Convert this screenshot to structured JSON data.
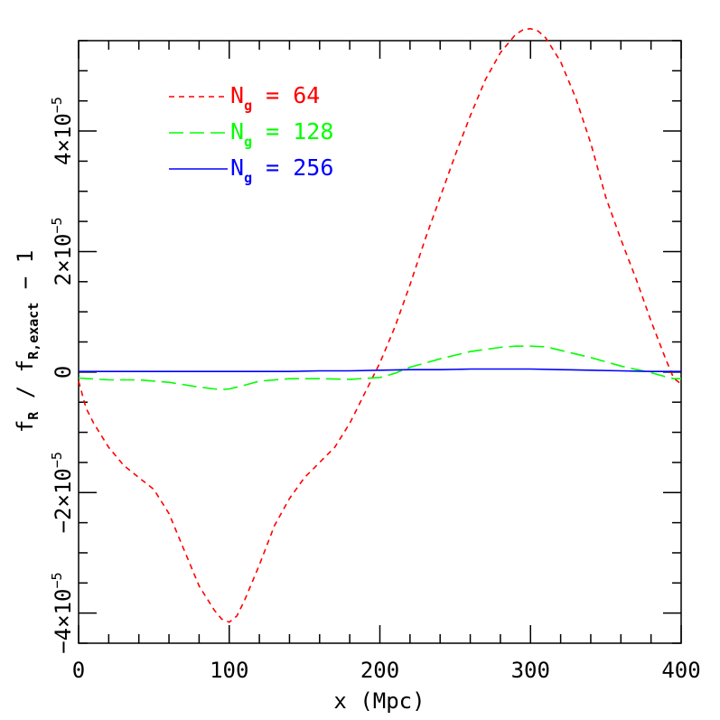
{
  "chart_data": {
    "type": "line",
    "xlabel": "x (Mpc)",
    "ylabel_parts": {
      "f1": "f",
      "sub1": "R",
      "slash": " / ",
      "f2": "f",
      "sub2": "R,exact",
      "tail": " − 1"
    },
    "xlim": [
      0,
      400
    ],
    "ylim": [
      -4.5e-05,
      5.5e-05
    ],
    "x_ticks": [
      {
        "value": 0,
        "label": "0"
      },
      {
        "value": 100,
        "label": "100"
      },
      {
        "value": 200,
        "label": "200"
      },
      {
        "value": 300,
        "label": "300"
      },
      {
        "value": 400,
        "label": "400"
      }
    ],
    "y_ticks": [
      {
        "value": -4e-05,
        "mant": "−4×10",
        "exp": "−5"
      },
      {
        "value": -2e-05,
        "mant": "−2×10",
        "exp": "−5"
      },
      {
        "value": 0,
        "mant": "0",
        "exp": ""
      },
      {
        "value": 2e-05,
        "mant": "2×10",
        "exp": "−5"
      },
      {
        "value": 4e-05,
        "mant": "4×10",
        "exp": "−5"
      }
    ],
    "x_minor_step": 20,
    "y_minor_step": 5e-06,
    "grid": false,
    "legend_position": "top-left",
    "series": [
      {
        "name": "64",
        "legend_prefix": "N",
        "legend_sub": "g",
        "legend_eq": " = ",
        "color": "#ff0000",
        "dash": "6,5",
        "x": [
          0,
          5,
          10,
          20,
          30,
          40,
          50,
          60,
          70,
          80,
          90,
          95,
          100,
          105,
          110,
          120,
          130,
          140,
          150,
          160,
          170,
          180,
          190,
          200,
          210,
          220,
          230,
          240,
          250,
          260,
          270,
          280,
          290,
          295,
          300,
          305,
          310,
          320,
          330,
          340,
          350,
          360,
          370,
          380,
          390,
          395,
          400
        ],
        "y": [
          -1.5e-06,
          -6e-06,
          -8.5e-06,
          -1.25e-05,
          -1.55e-05,
          -1.75e-05,
          -1.95e-05,
          -2.35e-05,
          -2.95e-05,
          -3.55e-05,
          -3.95e-05,
          -4.1e-05,
          -4.15e-05,
          -4.05e-05,
          -3.8e-05,
          -3.2e-05,
          -2.55e-05,
          -2.1e-05,
          -1.75e-05,
          -1.5e-05,
          -1.25e-05,
          -8.5e-06,
          -3.5e-06,
          1.5e-06,
          7.5e-06,
          1.45e-05,
          2.2e-05,
          2.9e-05,
          3.6e-05,
          4.25e-05,
          4.85e-05,
          5.3e-05,
          5.6e-05,
          5.68e-05,
          5.7e-05,
          5.66e-05,
          5.55e-05,
          5.15e-05,
          4.55e-05,
          3.8e-05,
          2.9e-05,
          2.2e-05,
          1.55e-05,
          8.5e-06,
          2e-06,
          -1e-06,
          -2e-06
        ]
      },
      {
        "name": "128",
        "legend_prefix": "N",
        "legend_sub": "g",
        "legend_eq": " = ",
        "color": "#00ff00",
        "dash": "16,7",
        "x": [
          0,
          20,
          40,
          60,
          80,
          90,
          95,
          100,
          110,
          120,
          140,
          160,
          180,
          200,
          210,
          220,
          240,
          260,
          280,
          290,
          300,
          310,
          320,
          340,
          360,
          380,
          390,
          395,
          400
        ],
        "y": [
          -1e-06,
          -1.3e-06,
          -1.3e-06,
          -1.7e-06,
          -2.5e-06,
          -2.8e-06,
          -2.9e-06,
          -2.8e-06,
          -2.2e-06,
          -1.5e-06,
          -1.1e-06,
          -1.1e-06,
          -1.2e-06,
          -9e-07,
          -2e-07,
          8e-07,
          2.2e-06,
          3.4e-06,
          4.1e-06,
          4.3e-06,
          4.3e-06,
          4.2e-06,
          3.6e-06,
          2.4e-06,
          1e-06,
          -1e-07,
          -8e-07,
          -1.1e-06,
          -1.1e-06
        ]
      },
      {
        "name": "256",
        "legend_prefix": "N",
        "legend_sub": "g",
        "legend_eq": " = ",
        "color": "#0000ff",
        "dash": "",
        "x": [
          0,
          20,
          40,
          60,
          80,
          100,
          120,
          140,
          160,
          180,
          200,
          220,
          240,
          260,
          280,
          300,
          320,
          340,
          360,
          380,
          400
        ],
        "y": [
          1e-07,
          1e-07,
          1e-07,
          1e-07,
          1e-07,
          1e-07,
          1e-07,
          1e-07,
          2e-07,
          2e-07,
          3e-07,
          4e-07,
          4e-07,
          5e-07,
          5e-07,
          5e-07,
          4e-07,
          3e-07,
          2e-07,
          1e-07,
          1e-07
        ]
      }
    ]
  }
}
